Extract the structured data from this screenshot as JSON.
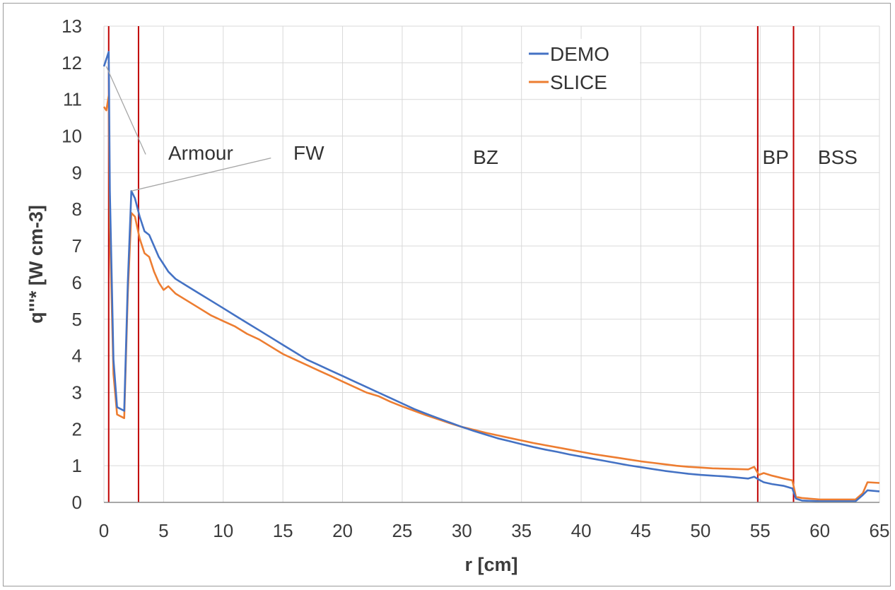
{
  "chart_data": {
    "type": "line",
    "title": "",
    "xlabel": "r [cm]",
    "ylabel": "q'''* [W cm-3]",
    "xlim": [
      0,
      65
    ],
    "ylim": [
      0,
      13
    ],
    "x_ticks": [
      "0",
      "5",
      "10",
      "15",
      "20",
      "25",
      "30",
      "35",
      "40",
      "45",
      "50",
      "55",
      "60",
      "65"
    ],
    "y_ticks": [
      "0",
      "1",
      "2",
      "3",
      "4",
      "5",
      "6",
      "7",
      "8",
      "9",
      "10",
      "11",
      "12",
      "13"
    ],
    "grid": true,
    "legend_position": "top-center",
    "boundaries": [
      0.4,
      2.9,
      54.8,
      57.8
    ],
    "boundary_color": "#c00000",
    "annotations": [
      {
        "text": "Armour",
        "pointer_from": [
          0.2,
          11.9
        ],
        "pointer_to": [
          3.5,
          9.5
        ]
      },
      {
        "text": "FW",
        "pointer_from": [
          2.3,
          8.5
        ],
        "pointer_to": [
          14.0,
          9.4
        ]
      }
    ],
    "regions": [
      {
        "text": "BZ",
        "x": 32
      },
      {
        "text": "BP",
        "x": 56.3
      },
      {
        "text": "BSS",
        "x": 61.5
      }
    ],
    "series": [
      {
        "name": "DEMO",
        "color": "#4472c4",
        "x": [
          0,
          0.2,
          0.4,
          0.5,
          0.8,
          1.1,
          1.7,
          2.0,
          2.3,
          2.6,
          3.0,
          3.4,
          3.8,
          4.2,
          4.6,
          5.0,
          5.4,
          6,
          7,
          8,
          9,
          10,
          11,
          12,
          13,
          14,
          15,
          16,
          17,
          18,
          19,
          20,
          21,
          22,
          23,
          24,
          25,
          26,
          27,
          28,
          29,
          30,
          31,
          32,
          33,
          34,
          35,
          36,
          37,
          38,
          39,
          40,
          41,
          42,
          43,
          44,
          45,
          46,
          47,
          48,
          49,
          50,
          51,
          52,
          53,
          54,
          54.5,
          54.9,
          55.3,
          56,
          57,
          57.7,
          58.0,
          58.5,
          60,
          62,
          63,
          63.6,
          64,
          65
        ],
        "y": [
          11.9,
          12.1,
          12.3,
          8.5,
          3.9,
          2.6,
          2.5,
          6.0,
          8.5,
          8.3,
          7.8,
          7.4,
          7.3,
          7.0,
          6.7,
          6.5,
          6.3,
          6.1,
          5.9,
          5.7,
          5.5,
          5.3,
          5.1,
          4.9,
          4.7,
          4.5,
          4.3,
          4.1,
          3.9,
          3.75,
          3.6,
          3.45,
          3.3,
          3.15,
          3.0,
          2.85,
          2.7,
          2.55,
          2.42,
          2.3,
          2.18,
          2.06,
          1.95,
          1.85,
          1.75,
          1.67,
          1.59,
          1.51,
          1.44,
          1.38,
          1.31,
          1.25,
          1.19,
          1.13,
          1.07,
          1.01,
          0.96,
          0.91,
          0.86,
          0.82,
          0.78,
          0.75,
          0.73,
          0.71,
          0.68,
          0.65,
          0.7,
          0.62,
          0.55,
          0.5,
          0.45,
          0.38,
          0.1,
          0.05,
          0.03,
          0.03,
          0.03,
          0.2,
          0.33,
          0.3
        ]
      },
      {
        "name": "SLICE",
        "color": "#ed7d31",
        "x": [
          0,
          0.2,
          0.4,
          0.5,
          0.8,
          1.1,
          1.7,
          2.0,
          2.3,
          2.6,
          3.0,
          3.4,
          3.8,
          4.2,
          4.6,
          5.0,
          5.4,
          6,
          7,
          8,
          9,
          10,
          11,
          12,
          13,
          14,
          15,
          16,
          17,
          18,
          19,
          20,
          21,
          22,
          23,
          24,
          25,
          26,
          27,
          28,
          29,
          30,
          31,
          32,
          33,
          34,
          35,
          36,
          37,
          38,
          39,
          40,
          41,
          42,
          43,
          44,
          45,
          46,
          47,
          48,
          49,
          50,
          51,
          52,
          53,
          54,
          54.5,
          54.9,
          55.3,
          56,
          57,
          57.7,
          58.0,
          58.5,
          60,
          62,
          63,
          63.6,
          64,
          65
        ],
        "y": [
          10.8,
          10.7,
          11.1,
          7.5,
          3.5,
          2.4,
          2.3,
          5.7,
          7.9,
          7.8,
          7.2,
          6.8,
          6.7,
          6.3,
          6.0,
          5.8,
          5.9,
          5.7,
          5.5,
          5.3,
          5.1,
          4.95,
          4.8,
          4.6,
          4.45,
          4.25,
          4.05,
          3.9,
          3.75,
          3.6,
          3.45,
          3.3,
          3.15,
          3.0,
          2.9,
          2.75,
          2.62,
          2.5,
          2.38,
          2.27,
          2.16,
          2.06,
          1.98,
          1.9,
          1.83,
          1.76,
          1.69,
          1.62,
          1.56,
          1.5,
          1.44,
          1.38,
          1.32,
          1.27,
          1.22,
          1.17,
          1.12,
          1.08,
          1.04,
          1.0,
          0.97,
          0.95,
          0.93,
          0.92,
          0.91,
          0.9,
          0.97,
          0.75,
          0.8,
          0.73,
          0.65,
          0.6,
          0.15,
          0.12,
          0.08,
          0.08,
          0.08,
          0.25,
          0.55,
          0.53
        ]
      }
    ]
  }
}
